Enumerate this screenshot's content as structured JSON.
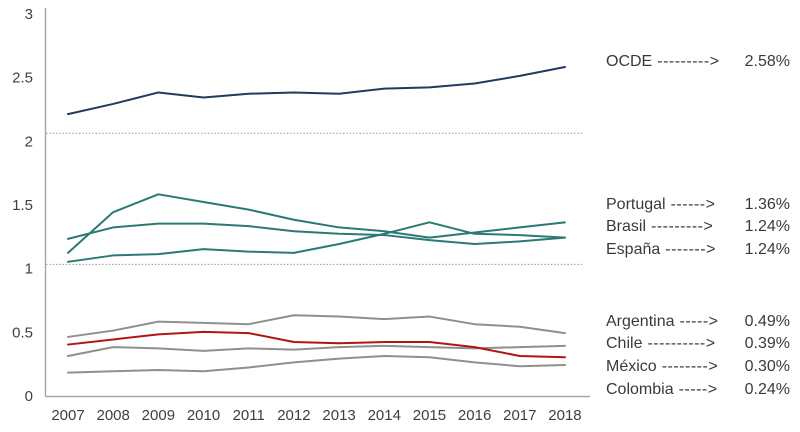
{
  "chart_data": {
    "type": "line",
    "title": "",
    "xlabel": "",
    "ylabel": "",
    "x_categories": [
      "2007",
      "2008",
      "2009",
      "2010",
      "2011",
      "2012",
      "2013",
      "2014",
      "2015",
      "2016",
      "2017",
      "2018"
    ],
    "yticks": [
      0,
      0.5,
      1,
      1.5,
      2,
      2.5,
      3
    ],
    "ylim": [
      0,
      3
    ],
    "grid": false,
    "dotted_reference_lines": [
      1.03,
      2.06
    ],
    "legend_position": "right",
    "series": [
      {
        "id": "ocde",
        "name": "OCDE",
        "color": "#233a5e",
        "final_label": "2.58%",
        "values": [
          2.21,
          2.29,
          2.38,
          2.34,
          2.37,
          2.38,
          2.37,
          2.41,
          2.42,
          2.45,
          2.51,
          2.58
        ]
      },
      {
        "id": "portugal",
        "name": "Portugal",
        "color": "#2a7a73",
        "final_label": "1.36%",
        "values": [
          1.12,
          1.44,
          1.58,
          1.52,
          1.46,
          1.38,
          1.32,
          1.29,
          1.24,
          1.28,
          1.32,
          1.36
        ]
      },
      {
        "id": "brasil",
        "name": "Brasil",
        "color": "#2a7a73",
        "final_label": "1.24%",
        "values": [
          1.05,
          1.1,
          1.11,
          1.15,
          1.13,
          1.12,
          1.19,
          1.27,
          1.36,
          1.27,
          1.26,
          1.24
        ]
      },
      {
        "id": "espana",
        "name": "España",
        "color": "#2a7a73",
        "final_label": "1.24%",
        "values": [
          1.23,
          1.32,
          1.35,
          1.35,
          1.33,
          1.29,
          1.27,
          1.26,
          1.22,
          1.19,
          1.21,
          1.24
        ]
      },
      {
        "id": "argentina",
        "name": "Argentina",
        "color": "#8f8f8f",
        "final_label": "0.49%",
        "values": [
          0.46,
          0.51,
          0.58,
          0.57,
          0.56,
          0.63,
          0.62,
          0.6,
          0.62,
          0.56,
          0.54,
          0.49
        ]
      },
      {
        "id": "chile",
        "name": "Chile",
        "color": "#8f8f8f",
        "final_label": "0.39%",
        "values": [
          0.31,
          0.38,
          0.37,
          0.35,
          0.37,
          0.36,
          0.38,
          0.39,
          0.38,
          0.37,
          0.38,
          0.39
        ]
      },
      {
        "id": "mexico",
        "name": "México",
        "color": "#b01513",
        "final_label": "0.30%",
        "values": [
          0.4,
          0.44,
          0.48,
          0.5,
          0.49,
          0.42,
          0.41,
          0.42,
          0.42,
          0.38,
          0.31,
          0.3
        ]
      },
      {
        "id": "colombia",
        "name": "Colombia",
        "color": "#8f8f8f",
        "final_label": "0.24%",
        "values": [
          0.18,
          0.19,
          0.2,
          0.19,
          0.22,
          0.26,
          0.29,
          0.31,
          0.3,
          0.26,
          0.23,
          0.24
        ]
      }
    ]
  },
  "legend": {
    "items": [
      {
        "name": "OCDE",
        "arrow": "--------->",
        "value": "2.58%"
      },
      {
        "name": "Portugal",
        "arrow": "------>",
        "value": "1.36%"
      },
      {
        "name": "Brasil",
        "arrow": "--------->",
        "value": "1.24%"
      },
      {
        "name": "España",
        "arrow": "------->",
        "value": "1.24%"
      },
      {
        "name": "Argentina",
        "arrow": "----->",
        "value": "0.49%"
      },
      {
        "name": "Chile",
        "arrow": "---------->",
        "value": "0.39%"
      },
      {
        "name": "México",
        "arrow": "-------->",
        "value": "0.30%"
      },
      {
        "name": "Colombia",
        "arrow": "----->",
        "value": "0.24%"
      }
    ]
  },
  "colors": {
    "axis": "#a6a6a6",
    "separator": "#999999",
    "tick_text": "#3f3f3f"
  }
}
